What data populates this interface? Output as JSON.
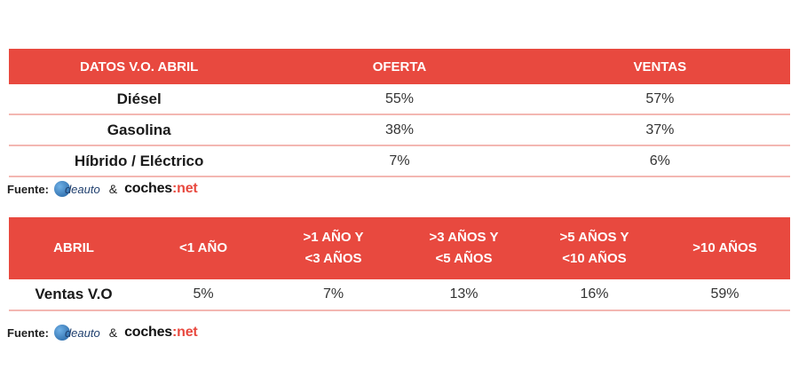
{
  "table1": {
    "headers": [
      "DATOS V.O. ABRIL",
      "OFERTA",
      "VENTAS"
    ],
    "rows": [
      {
        "label": "Diésel",
        "oferta": "55%",
        "ventas": "57%"
      },
      {
        "label": "Gasolina",
        "oferta": "38%",
        "ventas": "37%"
      },
      {
        "label": "Híbrido / Eléctrico",
        "oferta": "7%",
        "ventas": "6%"
      }
    ]
  },
  "table2": {
    "headers": [
      {
        "line1": "ABRIL",
        "line2": ""
      },
      {
        "line1": "<1 AÑO",
        "line2": ""
      },
      {
        "line1": ">1 AÑO Y",
        "line2": "<3 AÑOS"
      },
      {
        "line1": ">3 AÑOS Y",
        "line2": "<5 AÑOS"
      },
      {
        "line1": ">5 AÑOS Y",
        "line2": "<10 AÑOS"
      },
      {
        "line1": ">10 AÑOS",
        "line2": ""
      }
    ],
    "row": {
      "label": "Ventas V.O",
      "values": [
        "5%",
        "7%",
        "13%",
        "16%",
        "59%"
      ]
    }
  },
  "source": {
    "label": "Fuente:",
    "ideauto": "deauto",
    "amp": "&",
    "coches_a": "coches",
    "coches_sep": ":",
    "coches_b": "net"
  },
  "colors": {
    "header": "#e8493f",
    "row_line": "#f3b7b2",
    "brand": "#e8493f"
  }
}
